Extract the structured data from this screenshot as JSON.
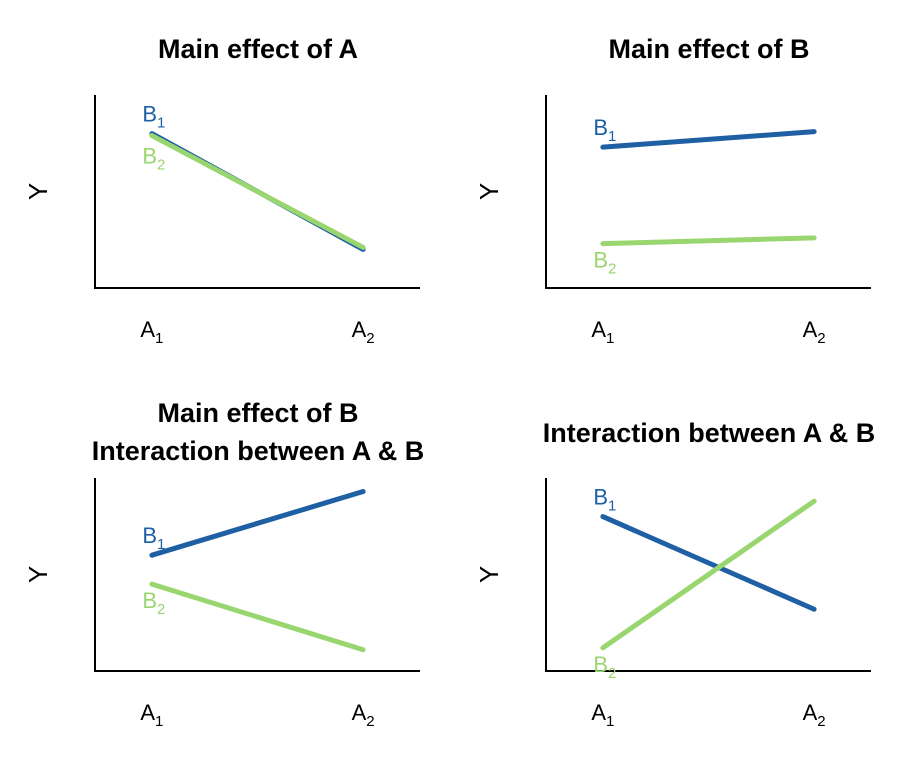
{
  "colors": {
    "b1": "#1f5fa4",
    "b2": "#9ad670"
  },
  "chart_data": [
    {
      "type": "line",
      "title": [
        "Main effect of A"
      ],
      "ylabel": "Y",
      "categories": [
        {
          "main": "A",
          "sub": "1"
        },
        {
          "main": "A",
          "sub": "2"
        }
      ],
      "ylim": [
        0,
        100
      ],
      "series": [
        {
          "name": {
            "main": "B",
            "sub": "1"
          },
          "color": "b1",
          "values": [
            80,
            20
          ]
        },
        {
          "name": {
            "main": "B",
            "sub": "2"
          },
          "color": "b2",
          "values": [
            79,
            21
          ]
        }
      ]
    },
    {
      "type": "line",
      "title": [
        "Main effect of B"
      ],
      "ylabel": "Y",
      "categories": [
        {
          "main": "A",
          "sub": "1"
        },
        {
          "main": "A",
          "sub": "2"
        }
      ],
      "ylim": [
        0,
        100
      ],
      "series": [
        {
          "name": {
            "main": "B",
            "sub": "1"
          },
          "color": "b1",
          "values": [
            73,
            81
          ]
        },
        {
          "name": {
            "main": "B",
            "sub": "2"
          },
          "color": "b2",
          "values": [
            23,
            26
          ]
        }
      ]
    },
    {
      "type": "line",
      "title": [
        "Main effect of B",
        "Interaction between A & B"
      ],
      "ylabel": "Y",
      "categories": [
        {
          "main": "A",
          "sub": "1"
        },
        {
          "main": "A",
          "sub": "2"
        }
      ],
      "ylim": [
        0,
        100
      ],
      "series": [
        {
          "name": {
            "main": "B",
            "sub": "1"
          },
          "color": "b1",
          "values": [
            60,
            93
          ]
        },
        {
          "name": {
            "main": "B",
            "sub": "2"
          },
          "color": "b2",
          "values": [
            45,
            11
          ]
        }
      ]
    },
    {
      "type": "line",
      "title": [
        "Interaction between A & B"
      ],
      "ylabel": "Y",
      "categories": [
        {
          "main": "A",
          "sub": "1"
        },
        {
          "main": "A",
          "sub": "2"
        }
      ],
      "ylim": [
        0,
        100
      ],
      "series": [
        {
          "name": {
            "main": "B",
            "sub": "1"
          },
          "color": "b1",
          "values": [
            80,
            32
          ]
        },
        {
          "name": {
            "main": "B",
            "sub": "2"
          },
          "color": "b2",
          "values": [
            12,
            88
          ]
        }
      ]
    }
  ]
}
